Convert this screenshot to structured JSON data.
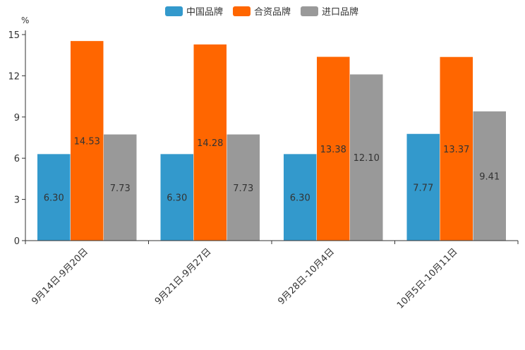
{
  "chart_data": {
    "type": "bar",
    "unit": "%",
    "categories": [
      "9月14日-9月20日",
      "9月21日-9月27日",
      "9月28日-10月4日",
      "10月5日-10月11日"
    ],
    "series": [
      {
        "name": "中国品牌",
        "color": "#3399cc",
        "values": [
          6.3,
          6.3,
          6.3,
          7.77
        ]
      },
      {
        "name": "合资品牌",
        "color": "#ff6600",
        "values": [
          14.53,
          14.28,
          13.38,
          13.37
        ]
      },
      {
        "name": "进口品牌",
        "color": "#999999",
        "values": [
          7.73,
          7.73,
          12.1,
          9.41
        ]
      }
    ],
    "value_labels": [
      [
        "6.30",
        "6.30",
        "6.30",
        "7.77"
      ],
      [
        "14.53",
        "14.28",
        "13.38",
        "13.37"
      ],
      [
        "7.73",
        "7.73",
        "12.10",
        "9.41"
      ]
    ],
    "ylim": [
      0,
      15
    ],
    "yticks": [
      0,
      3,
      6,
      9,
      12,
      15
    ],
    "legend": "top-center",
    "grid": false
  }
}
